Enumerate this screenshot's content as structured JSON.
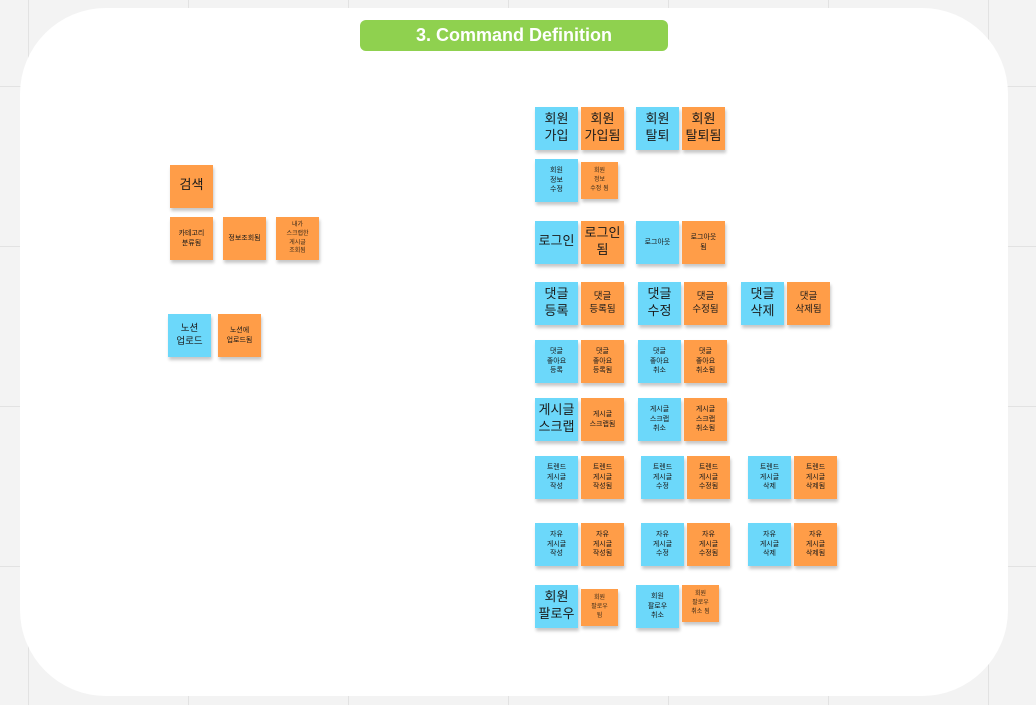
{
  "title": "3. Command Definition",
  "colors": {
    "command": "#6cd8fa",
    "event": "#ff9d48",
    "title_bg": "#8fd14f"
  },
  "notes": [
    {
      "text": "검색",
      "color": "orange"
    },
    {
      "text": "카테고리\n분류됨",
      "color": "orange"
    },
    {
      "text": "정보조회됨",
      "color": "orange"
    },
    {
      "text": "내가\n스크랩한\n게시글\n조회됨",
      "color": "orange"
    },
    {
      "text": "노션\n업로드",
      "color": "blue"
    },
    {
      "text": "노션에\n업로드됨",
      "color": "orange"
    },
    {
      "text": "회원\n가입",
      "color": "blue"
    },
    {
      "text": "회원\n가입됨",
      "color": "orange"
    },
    {
      "text": "회원\n탈퇴",
      "color": "blue"
    },
    {
      "text": "회원\n탈퇴됨",
      "color": "orange"
    },
    {
      "text": "회원\n정보\n수정",
      "color": "blue"
    },
    {
      "text": "회원\n정보\n수정 됨",
      "color": "orange"
    },
    {
      "text": "로그인",
      "color": "blue"
    },
    {
      "text": "로그인\n됨",
      "color": "orange"
    },
    {
      "text": "로그아웃",
      "color": "blue"
    },
    {
      "text": "로그아웃\n됨",
      "color": "orange"
    },
    {
      "text": "댓글\n등록",
      "color": "blue"
    },
    {
      "text": "댓글\n등록됨",
      "color": "orange"
    },
    {
      "text": "댓글\n수정",
      "color": "blue"
    },
    {
      "text": "댓글\n수정됨",
      "color": "orange"
    },
    {
      "text": "댓글\n삭제",
      "color": "blue"
    },
    {
      "text": "댓글\n삭제됨",
      "color": "orange"
    },
    {
      "text": "댓글\n좋아요\n등록",
      "color": "blue"
    },
    {
      "text": "댓글\n좋아요\n등록됨",
      "color": "orange"
    },
    {
      "text": "댓글\n좋아요\n취소",
      "color": "blue"
    },
    {
      "text": "댓글\n좋아요\n취소됨",
      "color": "orange"
    },
    {
      "text": "게시글\n스크랩",
      "color": "blue"
    },
    {
      "text": "게시글\n스크랩됨",
      "color": "orange"
    },
    {
      "text": "게시글\n스크랩\n취소",
      "color": "blue"
    },
    {
      "text": "게시글\n스크랩\n취소됨",
      "color": "orange"
    },
    {
      "text": "트렌드\n게시글\n작성",
      "color": "blue"
    },
    {
      "text": "트렌드\n게시글\n작성됨",
      "color": "orange"
    },
    {
      "text": "트렌드\n게시글\n수정",
      "color": "blue"
    },
    {
      "text": "트렌드\n게시글\n수정됨",
      "color": "orange"
    },
    {
      "text": "트렌드\n게시글\n삭제",
      "color": "blue"
    },
    {
      "text": "트렌드\n게시글\n삭제됨",
      "color": "orange"
    },
    {
      "text": "자유\n게시글\n작성",
      "color": "blue"
    },
    {
      "text": "자유\n게시글\n작성됨",
      "color": "orange"
    },
    {
      "text": "자유\n게시글\n수정",
      "color": "blue"
    },
    {
      "text": "자유\n게시글\n수정됨",
      "color": "orange"
    },
    {
      "text": "자유\n게시글\n삭제",
      "color": "blue"
    },
    {
      "text": "자유\n게시글\n삭제됨",
      "color": "orange"
    },
    {
      "text": "회원\n팔로우",
      "color": "blue"
    },
    {
      "text": "회원\n팔로우\n됨",
      "color": "orange"
    },
    {
      "text": "회원\n팔로우\n취소",
      "color": "blue"
    },
    {
      "text": "회원\n팔로우\n취소 됨",
      "color": "orange"
    }
  ]
}
